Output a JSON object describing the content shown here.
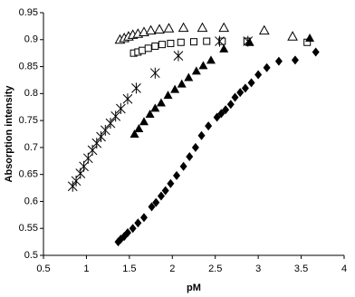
{
  "chart_data": {
    "type": "scatter",
    "x_label": "pM",
    "y_label": "Absorption intensity",
    "xlim": [
      0.5,
      4
    ],
    "xticks": [
      0.5,
      1,
      1.5,
      2,
      2.5,
      3,
      3.5,
      4
    ],
    "ylim": [
      0.5,
      0.95
    ],
    "yticks": [
      0.5,
      0.55,
      0.6,
      0.65,
      0.7,
      0.75,
      0.8,
      0.85,
      0.9,
      0.95
    ],
    "grid": false,
    "series": [
      {
        "marker": "triangle-open",
        "color": "#000000",
        "x": [
          1.39,
          1.44,
          1.49,
          1.54,
          1.6,
          1.67,
          1.75,
          1.85,
          1.96,
          2.13,
          2.35,
          2.6,
          3.07,
          3.4
        ],
        "values": [
          0.9,
          0.903,
          0.906,
          0.909,
          0.911,
          0.914,
          0.917,
          0.919,
          0.921,
          0.922,
          0.922,
          0.922,
          0.917,
          0.906
        ]
      },
      {
        "marker": "square-open",
        "color": "#000000",
        "x": [
          1.55,
          1.6,
          1.65,
          1.72,
          1.8,
          1.88,
          1.98,
          2.1,
          2.25,
          2.4,
          2.58,
          2.87,
          3.57
        ],
        "values": [
          0.875,
          0.877,
          0.88,
          0.884,
          0.888,
          0.891,
          0.893,
          0.895,
          0.896,
          0.897,
          0.897,
          0.897,
          0.895
        ]
      },
      {
        "marker": "asterisk",
        "color": "#000000",
        "x": [
          0.84,
          0.88,
          0.93,
          0.97,
          1.02,
          1.07,
          1.12,
          1.17,
          1.22,
          1.28,
          1.34,
          1.4,
          1.48,
          1.58,
          1.8,
          2.07,
          2.55,
          2.88
        ],
        "values": [
          0.628,
          0.638,
          0.652,
          0.665,
          0.68,
          0.695,
          0.708,
          0.72,
          0.732,
          0.745,
          0.758,
          0.772,
          0.79,
          0.81,
          0.838,
          0.87,
          0.897,
          0.897
        ]
      },
      {
        "marker": "triangle",
        "color": "#000000",
        "x": [
          1.56,
          1.61,
          1.67,
          1.74,
          1.8,
          1.87,
          1.95,
          2.03,
          2.11,
          2.19,
          2.28,
          2.36,
          2.45,
          2.6,
          2.9,
          3.6
        ],
        "values": [
          0.725,
          0.735,
          0.748,
          0.762,
          0.773,
          0.783,
          0.797,
          0.808,
          0.818,
          0.83,
          0.842,
          0.852,
          0.862,
          0.883,
          0.895,
          0.903
        ]
      },
      {
        "marker": "diamond",
        "color": "#000000",
        "x": [
          1.37,
          1.4,
          1.44,
          1.48,
          1.54,
          1.6,
          1.67,
          1.76,
          1.81,
          1.87,
          1.92,
          1.98,
          2.05,
          2.13,
          2.2,
          2.27,
          2.34,
          2.42,
          2.52,
          2.57,
          2.62,
          2.68,
          2.73,
          2.79,
          2.85,
          2.92,
          3.0,
          3.1,
          3.24,
          3.43,
          3.67
        ],
        "values": [
          0.525,
          0.53,
          0.535,
          0.542,
          0.55,
          0.56,
          0.57,
          0.59,
          0.598,
          0.61,
          0.62,
          0.633,
          0.648,
          0.665,
          0.683,
          0.7,
          0.722,
          0.74,
          0.756,
          0.763,
          0.77,
          0.78,
          0.793,
          0.802,
          0.81,
          0.82,
          0.835,
          0.848,
          0.86,
          0.862,
          0.877
        ]
      }
    ]
  }
}
